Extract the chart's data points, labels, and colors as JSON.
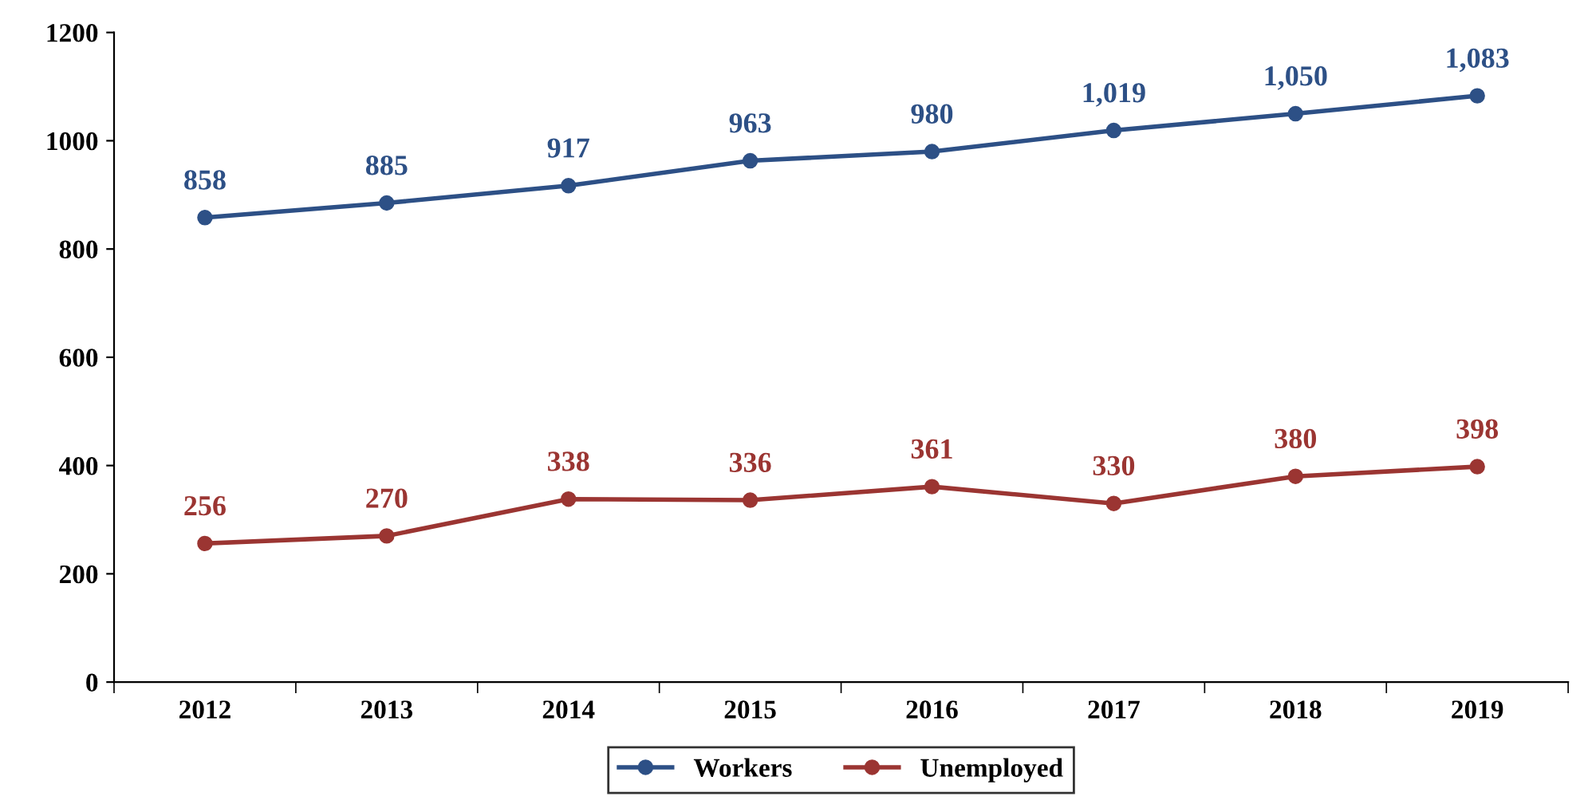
{
  "chart_data": {
    "type": "line",
    "categories": [
      "2012",
      "2013",
      "2014",
      "2015",
      "2016",
      "2017",
      "2018",
      "2019"
    ],
    "series": [
      {
        "name": "Workers",
        "color": "#2d5086",
        "values": [
          858,
          885,
          917,
          963,
          980,
          1019,
          1050,
          1083
        ],
        "value_labels": [
          "858",
          "885",
          "917",
          "963",
          "980",
          "1,019",
          "1,050",
          "1,083"
        ]
      },
      {
        "name": "Unemployed",
        "color": "#9b3532",
        "values": [
          256,
          270,
          338,
          336,
          361,
          330,
          380,
          398
        ],
        "value_labels": [
          "256",
          "270",
          "338",
          "336",
          "361",
          "330",
          "380",
          "398"
        ]
      }
    ],
    "ylim": [
      0,
      1200
    ],
    "yticks": [
      0,
      200,
      400,
      600,
      800,
      1000,
      1200
    ],
    "grid": false,
    "legend": "bottom",
    "marker": "circle",
    "line_style": "solid"
  }
}
